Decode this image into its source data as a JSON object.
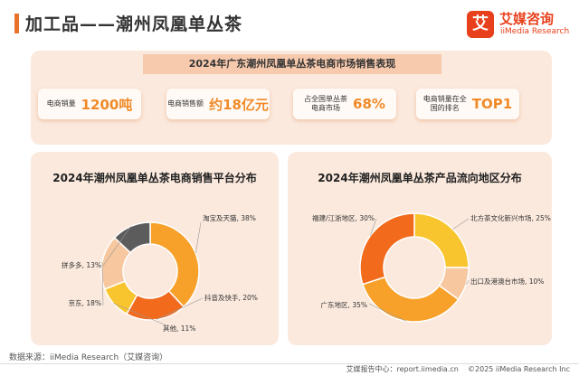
{
  "header": {
    "title": "加工品——潮州凤凰单丛茶"
  },
  "brand": {
    "mark": "艾",
    "cn": "艾媒咨询",
    "en": "iiMedia Research"
  },
  "banner": {
    "title": "2024年广东潮州凤凰单丛茶电商市场销售表现"
  },
  "stats": [
    {
      "label": "电商销量",
      "value": "1200吨"
    },
    {
      "label": "电商销售额",
      "value": "约18亿元"
    },
    {
      "label": "占全国单丛茶电商市场",
      "value": "68%"
    },
    {
      "label": "电商销量在全国的排名",
      "value": "TOP1"
    }
  ],
  "chart_data": [
    {
      "type": "pie",
      "title": "2024年潮州凤凰单丛茶电商销售平台分布",
      "slices": [
        {
          "label": "淘宝及天猫, 38%",
          "value": 38,
          "color": "#f7a12a"
        },
        {
          "label": "抖音及快手, 20%",
          "value": 20,
          "color": "#f26b1d"
        },
        {
          "label": "其他, 11%",
          "value": 11,
          "color": "#f9c52e"
        },
        {
          "label": "京东, 18%",
          "value": 18,
          "color": "#f7c89f"
        },
        {
          "label": "拼多多, 13%",
          "value": 13,
          "color": "#5c5c5c"
        }
      ]
    },
    {
      "type": "pie",
      "title": "2024年潮州凤凰单丛茶产品流向地区分布",
      "slices": [
        {
          "label": "北方茶文化新兴市场, 25%",
          "value": 25,
          "color": "#f9c52e"
        },
        {
          "label": "出口及港澳台市场, 10%",
          "value": 10,
          "color": "#f7c89f"
        },
        {
          "label": "广东地区, 35%",
          "value": 35,
          "color": "#f7a12a"
        },
        {
          "label": "福建/江浙地区, 30%",
          "value": 30,
          "color": "#f26b1d"
        }
      ]
    }
  ],
  "footer": {
    "source": "数据来源：iiMedia Research（艾媒咨询）",
    "report_center": "艾媒报告中心：report.iimedia.cn",
    "copyright": "©2025  iiMedia Research  Inc"
  }
}
